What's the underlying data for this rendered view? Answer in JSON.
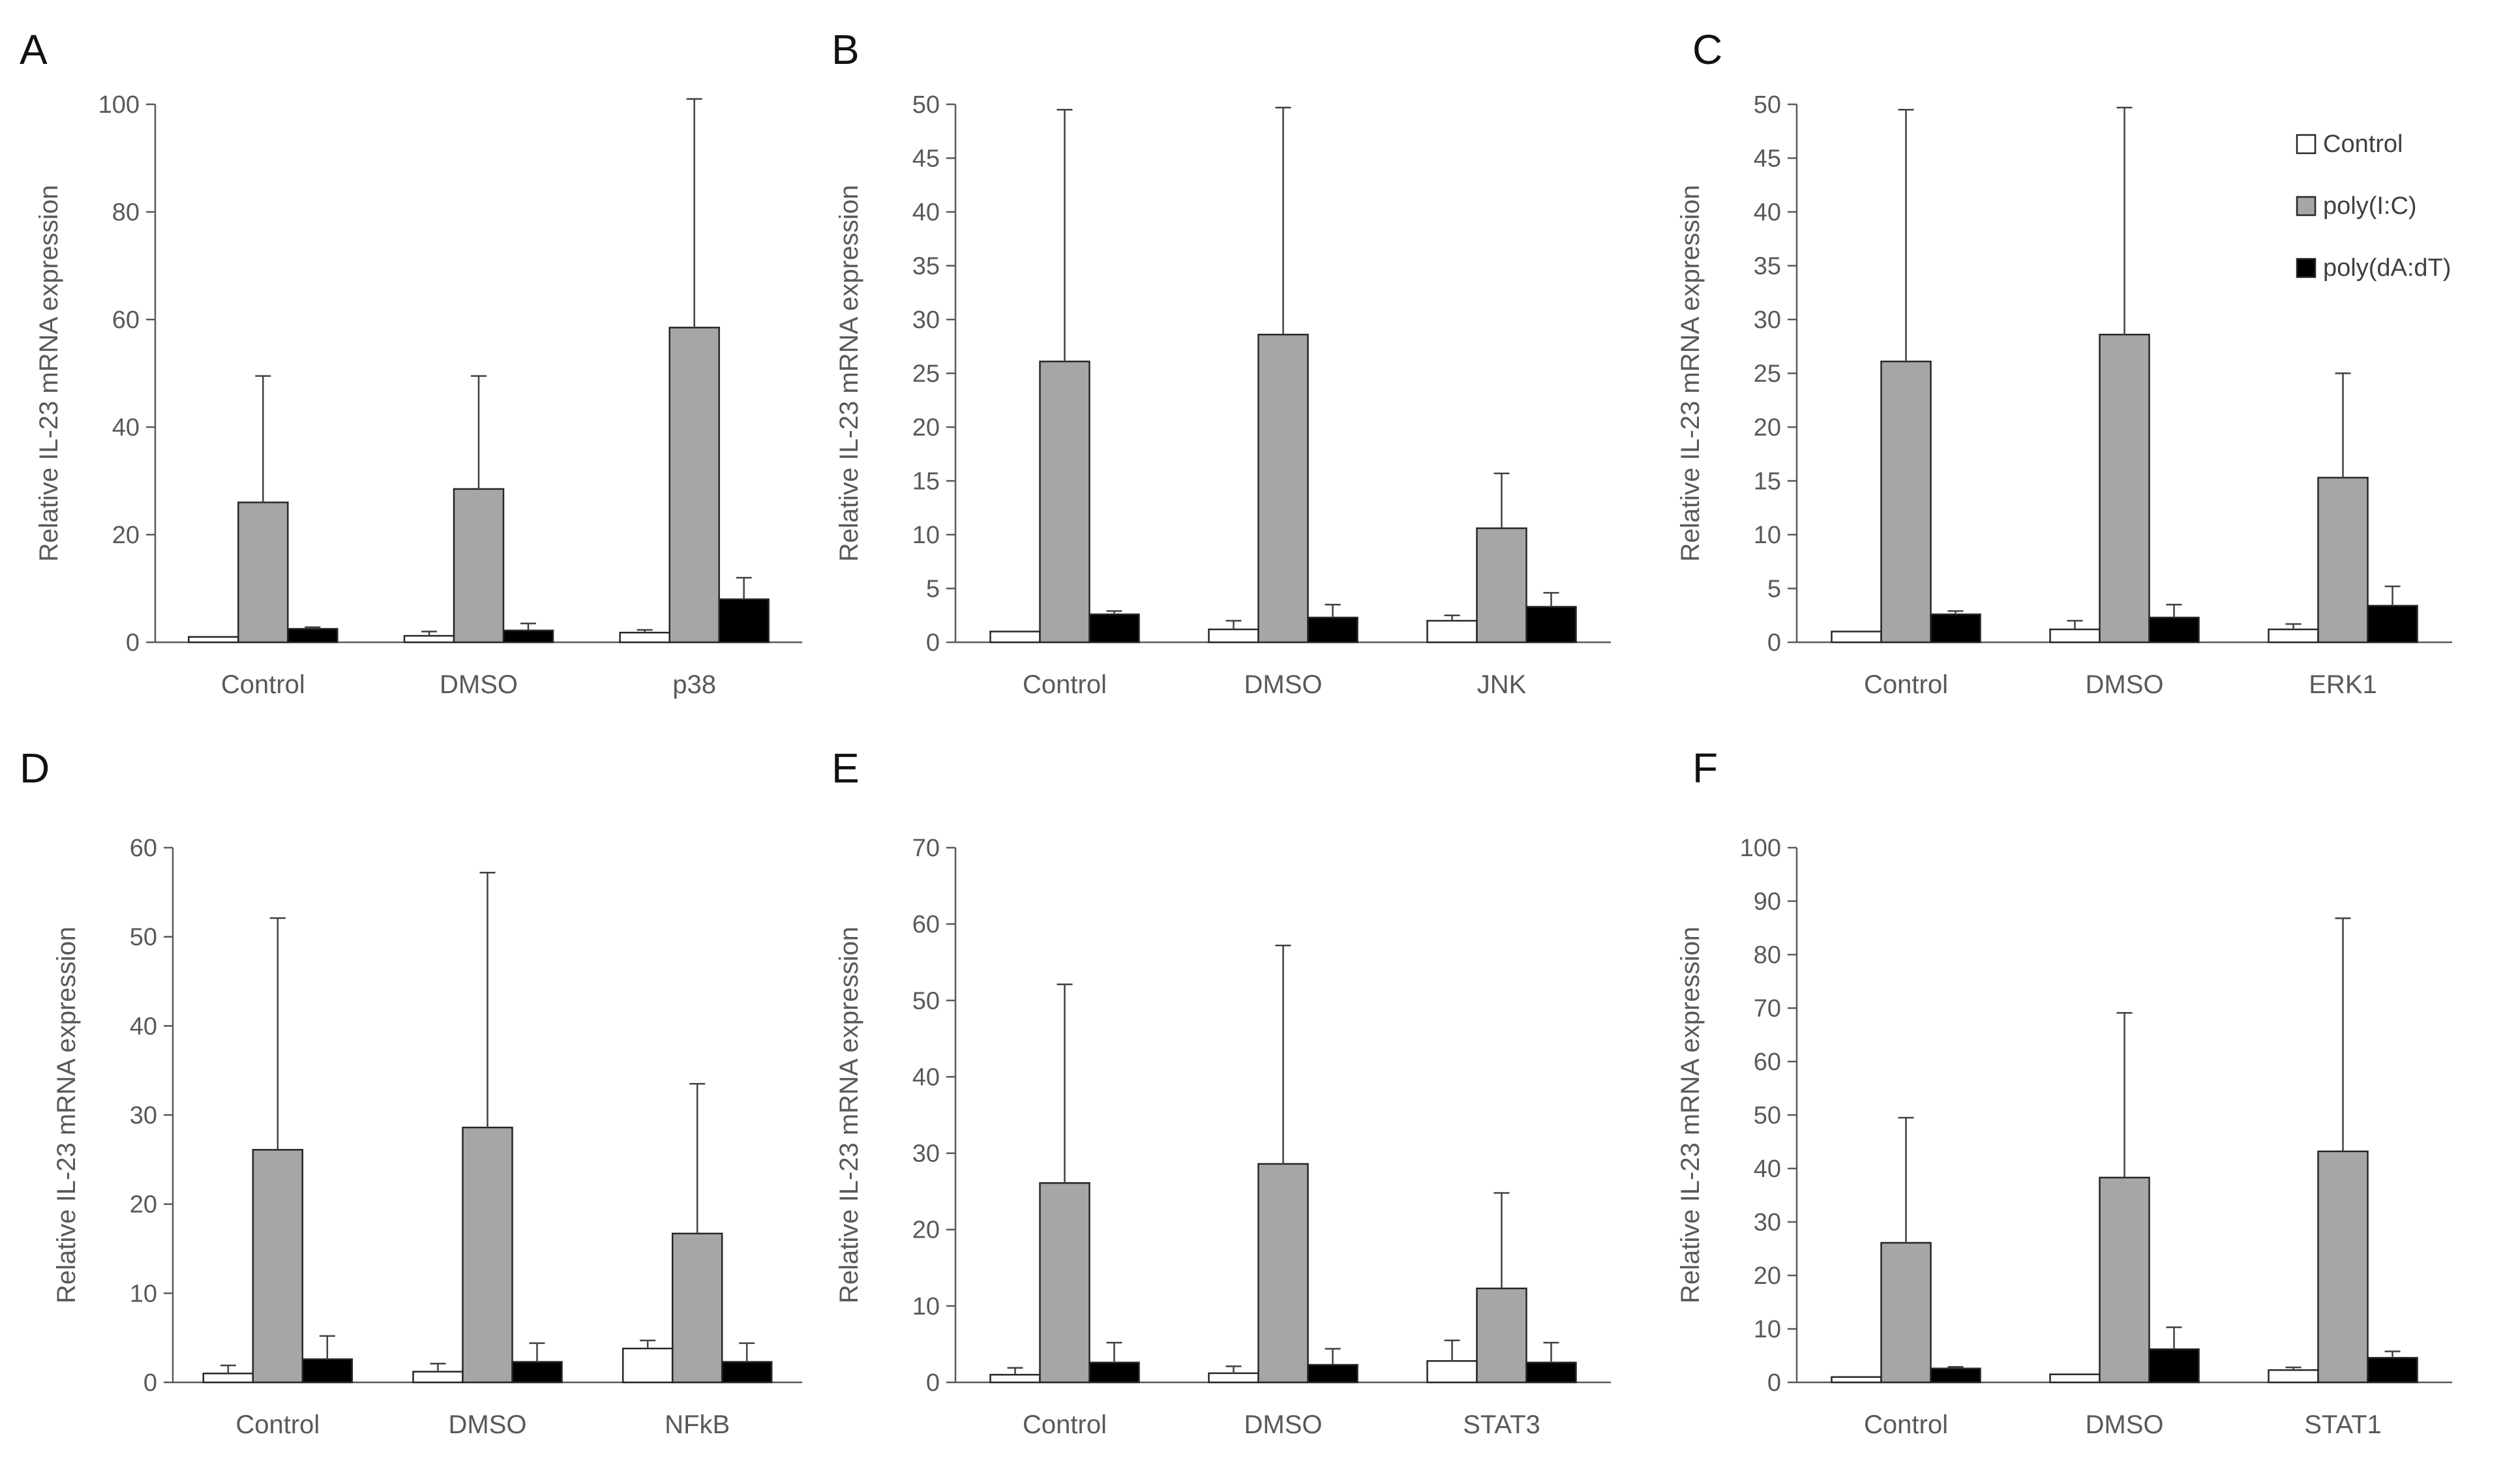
{
  "figure_colors": {
    "Control": "#ffffff",
    "poly(I:C)": "#a6a6a6",
    "poly(dA:dT)": "#000000",
    "axis": "#595959",
    "bar_stroke": "#262626"
  },
  "legend": {
    "entries": [
      "Control",
      "poly(I:C)",
      "poly(dA:dT)"
    ],
    "placement": "top-right of panel C"
  },
  "chart_data": [
    {
      "panel": "A",
      "type": "bar",
      "ylabel": "Relative IL-23 mRNA expression",
      "ylim": [
        0,
        100
      ],
      "yticks": [
        0,
        20,
        40,
        60,
        80,
        100
      ],
      "categories": [
        "Control",
        "DMSO",
        "p38"
      ],
      "series": [
        {
          "name": "Control",
          "values": [
            1.0,
            1.2,
            1.8
          ],
          "errors": [
            0.0,
            0.8,
            0.5
          ]
        },
        {
          "name": "poly(I:C)",
          "values": [
            26,
            28.5,
            58.5
          ],
          "errors": [
            23.5,
            21,
            42.5
          ]
        },
        {
          "name": "poly(dA:dT)",
          "values": [
            2.5,
            2.2,
            8
          ],
          "errors": [
            0.3,
            1.3,
            4
          ]
        }
      ]
    },
    {
      "panel": "B",
      "type": "bar",
      "ylabel": "Relative IL-23 mRNA expression",
      "ylim": [
        0,
        50
      ],
      "yticks": [
        0,
        5,
        10,
        15,
        20,
        25,
        30,
        35,
        40,
        45,
        50
      ],
      "categories": [
        "Control",
        "DMSO",
        "JNK"
      ],
      "series": [
        {
          "name": "Control",
          "values": [
            1.0,
            1.2,
            2.0
          ],
          "errors": [
            0.0,
            0.8,
            0.5
          ]
        },
        {
          "name": "poly(I:C)",
          "values": [
            26.1,
            28.6,
            10.6
          ],
          "errors": [
            23.4,
            21.1,
            5.1
          ]
        },
        {
          "name": "poly(dA:dT)",
          "values": [
            2.6,
            2.3,
            3.3
          ],
          "errors": [
            0.3,
            1.2,
            1.3
          ]
        }
      ]
    },
    {
      "panel": "C",
      "type": "bar",
      "ylabel": "Relative IL-23 mRNA expression",
      "ylim": [
        0,
        50
      ],
      "yticks": [
        0,
        5,
        10,
        15,
        20,
        25,
        30,
        35,
        40,
        45,
        50
      ],
      "categories": [
        "Control",
        "DMSO",
        "ERK1"
      ],
      "series": [
        {
          "name": "Control",
          "values": [
            1.0,
            1.2,
            1.2
          ],
          "errors": [
            0.0,
            0.8,
            0.5
          ]
        },
        {
          "name": "poly(I:C)",
          "values": [
            26.1,
            28.6,
            15.3
          ],
          "errors": [
            23.4,
            21.1,
            9.7
          ]
        },
        {
          "name": "poly(dA:dT)",
          "values": [
            2.6,
            2.3,
            3.4
          ],
          "errors": [
            0.3,
            1.2,
            1.8
          ]
        }
      ]
    },
    {
      "panel": "D",
      "type": "bar",
      "ylabel": "Relative IL-23 mRNA expression",
      "ylim": [
        0,
        60
      ],
      "yticks": [
        0,
        10,
        20,
        30,
        40,
        50,
        60
      ],
      "categories": [
        "Control",
        "DMSO",
        "NFkB"
      ],
      "series": [
        {
          "name": "Control",
          "values": [
            1.0,
            1.2,
            3.8
          ],
          "errors": [
            0.9,
            0.9,
            0.9
          ]
        },
        {
          "name": "poly(I:C)",
          "values": [
            26.1,
            28.6,
            16.7
          ],
          "errors": [
            26,
            28.6,
            16.8
          ]
        },
        {
          "name": "poly(dA:dT)",
          "values": [
            2.6,
            2.3,
            2.3
          ],
          "errors": [
            2.6,
            2.1,
            2.1
          ]
        }
      ]
    },
    {
      "panel": "E",
      "type": "bar",
      "ylabel": "Relative IL-23 mRNA expression",
      "ylim": [
        0,
        70
      ],
      "yticks": [
        0,
        10,
        20,
        30,
        40,
        50,
        60,
        70
      ],
      "categories": [
        "Control",
        "DMSO",
        "STAT3"
      ],
      "series": [
        {
          "name": "Control",
          "values": [
            1.0,
            1.2,
            2.8
          ],
          "errors": [
            0.9,
            0.9,
            2.7
          ]
        },
        {
          "name": "poly(I:C)",
          "values": [
            26.1,
            28.6,
            12.3
          ],
          "errors": [
            26,
            28.6,
            12.5
          ]
        },
        {
          "name": "poly(dA:dT)",
          "values": [
            2.6,
            2.3,
            2.6
          ],
          "errors": [
            2.6,
            2.1,
            2.6
          ]
        }
      ]
    },
    {
      "panel": "F",
      "type": "bar",
      "ylabel": "Relative IL-23 mRNA expression",
      "ylim": [
        0,
        100
      ],
      "yticks": [
        0,
        10,
        20,
        30,
        40,
        50,
        60,
        70,
        80,
        90,
        100
      ],
      "categories": [
        "Control",
        "DMSO",
        "STAT1"
      ],
      "series": [
        {
          "name": "Control",
          "values": [
            1.0,
            1.5,
            2.3
          ],
          "errors": [
            0.0,
            0.0,
            0.5
          ]
        },
        {
          "name": "poly(I:C)",
          "values": [
            26.1,
            38.3,
            43.2
          ],
          "errors": [
            23.4,
            30.8,
            43.6
          ]
        },
        {
          "name": "poly(dA:dT)",
          "values": [
            2.6,
            6.2,
            4.6
          ],
          "errors": [
            0.3,
            4.1,
            1.2
          ]
        }
      ]
    }
  ]
}
